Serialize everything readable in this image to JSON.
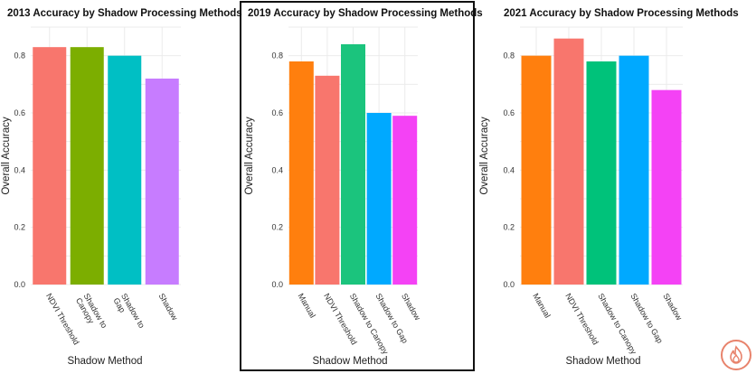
{
  "chart_data": [
    {
      "type": "bar",
      "title": "2013 Accuracy by Shadow Processing Methods",
      "xlabel": "Shadow Method",
      "ylabel": "Overall Accuracy",
      "ylim": [
        0,
        0.9
      ],
      "yticks": [
        "0.0",
        "0.2",
        "0.4",
        "0.6",
        "0.8"
      ],
      "grid": true,
      "categories": [
        "NDVI Threshold",
        "Shadow to Canopy",
        "Shadow to Gap",
        "Shadow"
      ],
      "category_lines": [
        [
          "NDVI Threshold"
        ],
        [
          "Shadow to",
          "Canopy"
        ],
        [
          "Shadow to",
          "Gap"
        ],
        [
          "Shadow"
        ]
      ],
      "values": [
        0.83,
        0.83,
        0.8,
        0.72
      ],
      "colors": [
        "#f8766d",
        "#7cae00",
        "#00bfc4",
        "#c77cff"
      ]
    },
    {
      "type": "bar",
      "title": "2019 Accuracy by Shadow Processing Methods",
      "xlabel": "Shadow Method",
      "ylabel": "Overall Accuracy",
      "ylim": [
        0,
        0.9
      ],
      "yticks": [
        "0.0",
        "0.2",
        "0.4",
        "0.6",
        "0.8"
      ],
      "grid": true,
      "categories": [
        "Manual",
        "NDVI Threshold",
        "Shadow to Canopy",
        "Shadow to Gap",
        "Shadow"
      ],
      "category_lines": [
        [
          "Manual"
        ],
        [
          "NDVI Threshold"
        ],
        [
          "Shadow to Canopy"
        ],
        [
          "Shadow to Gap"
        ],
        [
          "Shadow"
        ]
      ],
      "values": [
        0.78,
        0.73,
        0.84,
        0.6,
        0.59
      ],
      "colors": [
        "#ff7f0e",
        "#f8766d",
        "#1bc47d",
        "#00a9ff",
        "#f442f5"
      ]
    },
    {
      "type": "bar",
      "title": "2021 Accuracy by Shadow Processing Methods",
      "xlabel": "Shadow Method",
      "ylabel": "Overall Accuracy",
      "ylim": [
        0,
        0.9
      ],
      "yticks": [
        "0.0",
        "0.2",
        "0.4",
        "0.6",
        "0.8"
      ],
      "grid": true,
      "categories": [
        "Manual",
        "NDVI Threshold",
        "Shadow to Canopy",
        "Shadow to Gap",
        "Shadow"
      ],
      "category_lines": [
        [
          "Manual"
        ],
        [
          "NDVI Threshold"
        ],
        [
          "Shadow to Canopy"
        ],
        [
          "Shadow to Gap"
        ],
        [
          "Shadow"
        ]
      ],
      "values": [
        0.8,
        0.86,
        0.78,
        0.8,
        0.68
      ],
      "colors": [
        "#ff7f0e",
        "#f8766d",
        "#00c27a",
        "#00a9ff",
        "#f442f5"
      ]
    }
  ],
  "colors": {
    "frame": "#111111",
    "logo": "#e8836c",
    "grid": "#ebebeb"
  },
  "icons": {
    "logo": "flame-logo-icon"
  }
}
